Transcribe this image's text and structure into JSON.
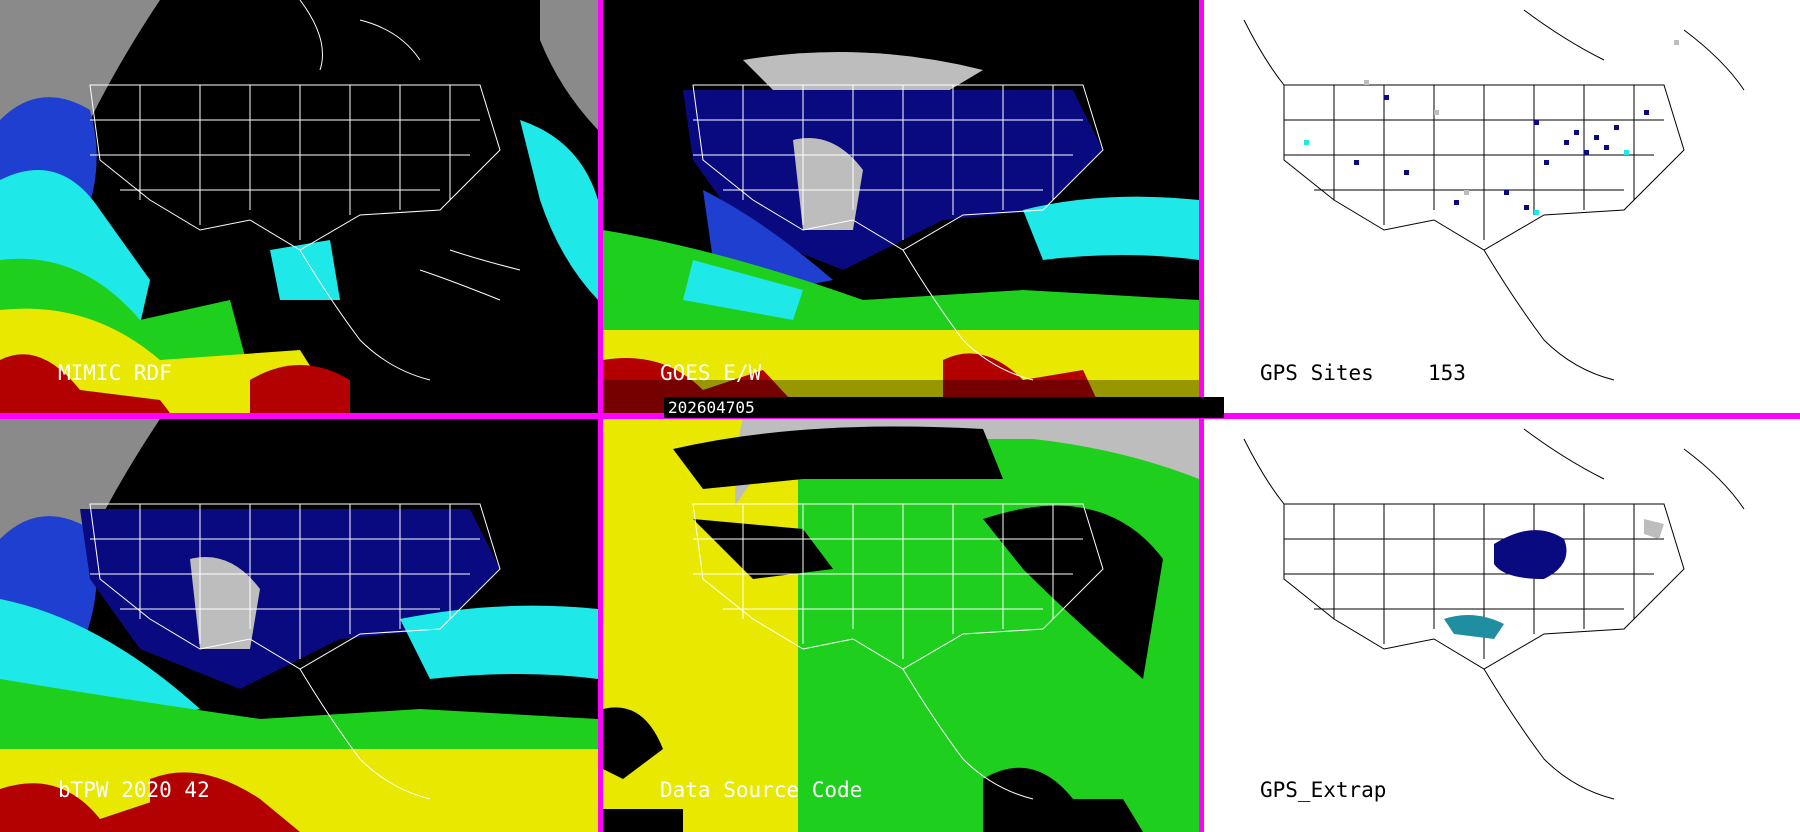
{
  "panels": {
    "mimic": {
      "label": "MIMIC RDF"
    },
    "goes": {
      "label": "GOES E/W"
    },
    "gps_sites": {
      "label": "GPS Sites",
      "count": "153"
    },
    "btpw": {
      "label": "bTPW 2020 42"
    },
    "source": {
      "label": "Data Source Code"
    },
    "gps_extrap": {
      "label": "GPS_Extrap"
    }
  },
  "timestamp": "202604705",
  "colors": {
    "divider": "#ff00ff",
    "colormap": [
      "#b30000",
      "#e8e800",
      "#1ecf1e",
      "#1fe8e8",
      "#1f3fd0",
      "#0a0a80",
      "#bdbdbd"
    ]
  }
}
